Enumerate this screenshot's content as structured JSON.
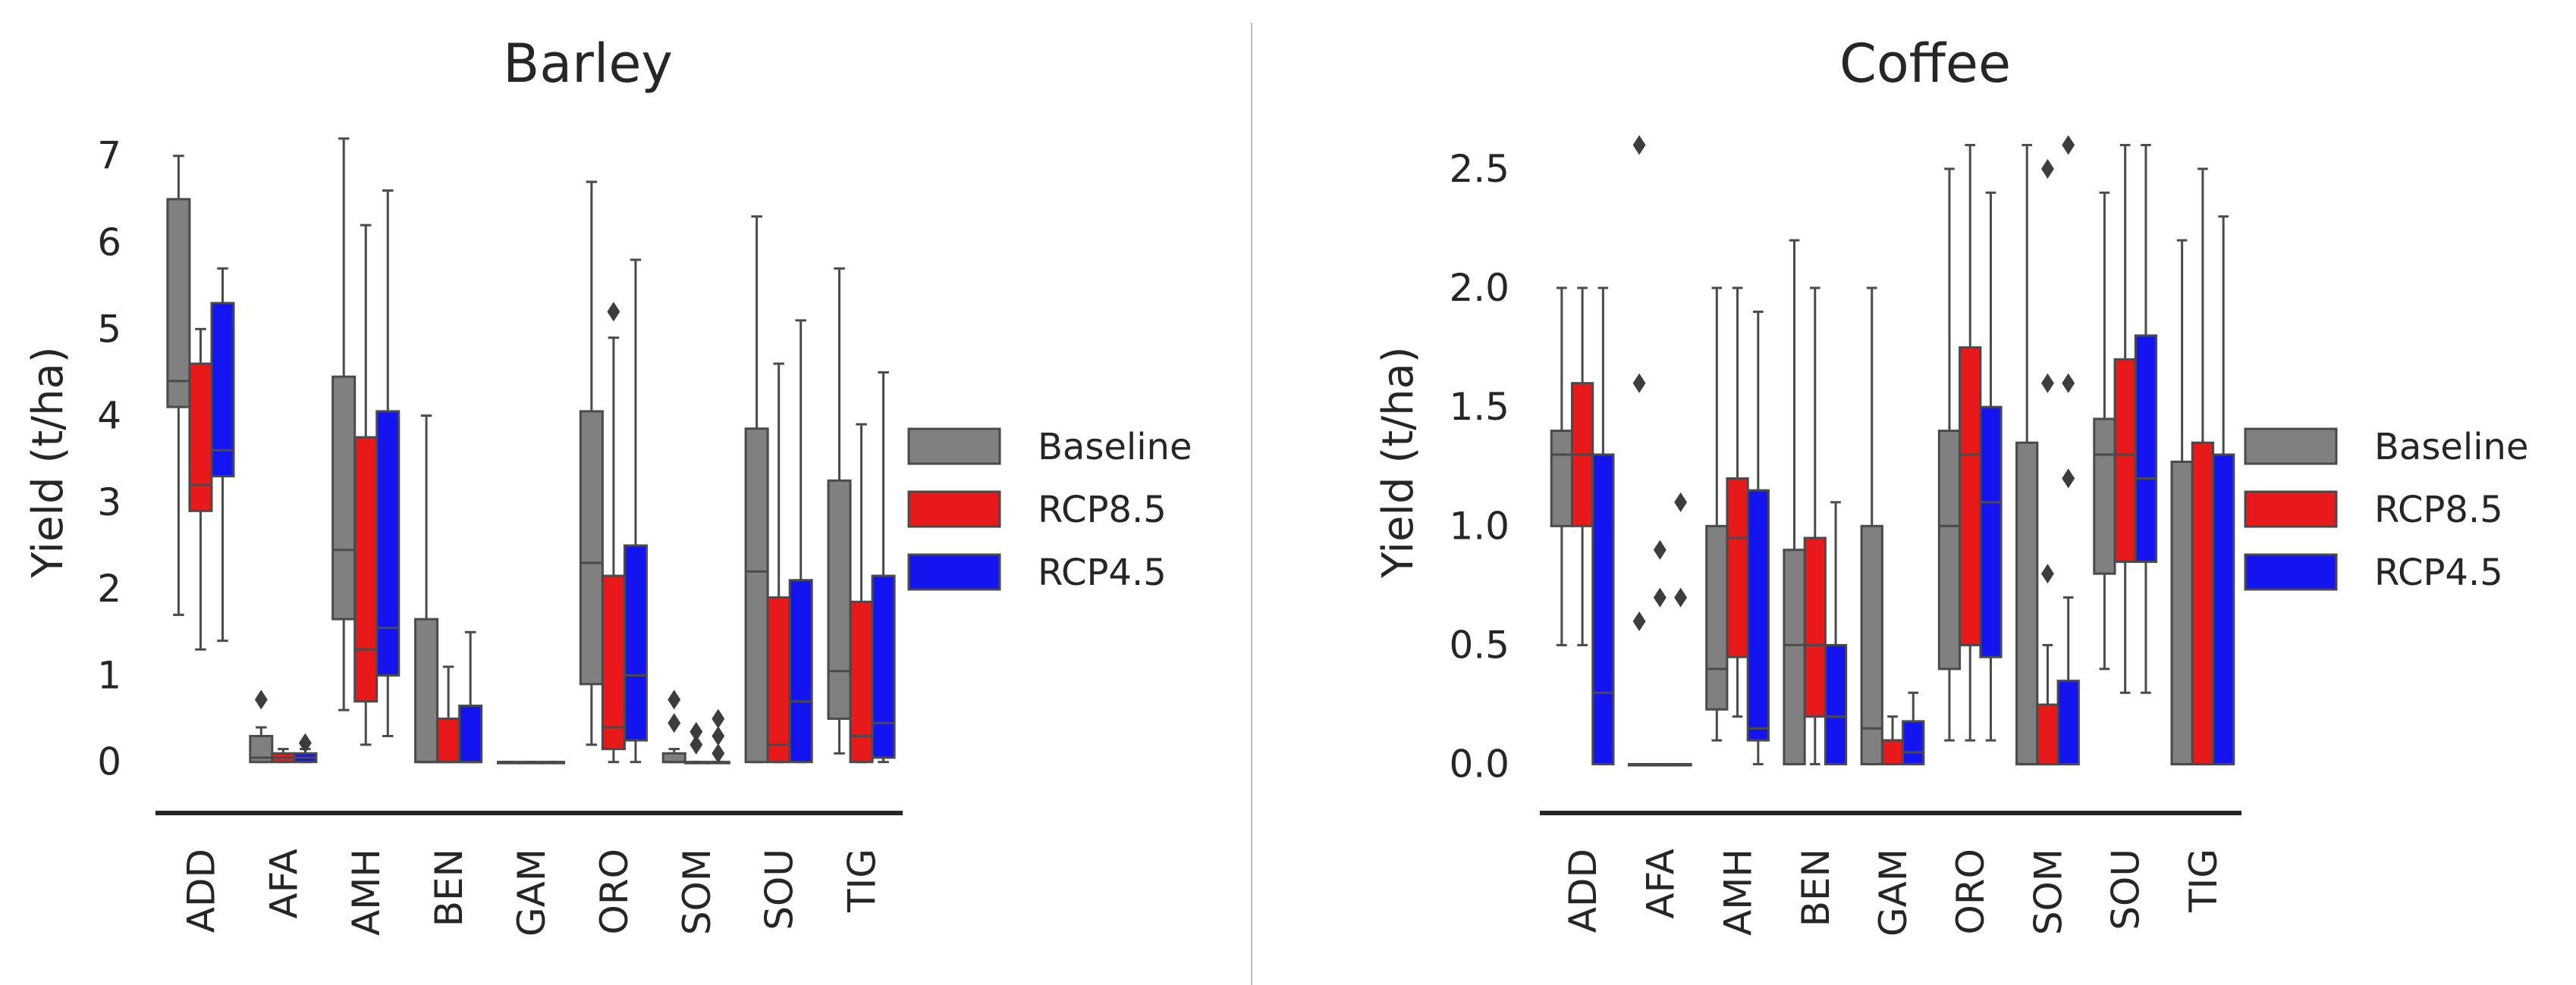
{
  "colors": {
    "Baseline": "#808080",
    "RCP8.5": "#e8191b",
    "RCP4.5": "#1414f0",
    "outline": "#4a4a4a",
    "axis": "#262626"
  },
  "chart_data": [
    {
      "type": "box",
      "title": "Barley",
      "ylabel": "Yield (t/ha)",
      "xlabel": "",
      "ylim": [
        -0.3,
        7.4
      ],
      "yticks": [
        "0",
        "1",
        "2",
        "3",
        "4",
        "5",
        "6",
        "7"
      ],
      "categories": [
        "ADD",
        "AFA",
        "AMH",
        "BEN",
        "GAM",
        "ORO",
        "SOM",
        "SOU",
        "TIG"
      ],
      "legend": {
        "position": "right",
        "entries": [
          "Baseline",
          "RCP8.5",
          "RCP4.5"
        ]
      },
      "series": [
        {
          "name": "Baseline",
          "boxes": [
            {
              "min": 1.7,
              "q1": 4.1,
              "med": 4.4,
              "q3": 6.5,
              "max": 7.0,
              "fliers": []
            },
            {
              "min": 0.0,
              "q1": 0.0,
              "med": 0.05,
              "q3": 0.3,
              "max": 0.4,
              "fliers": [
                0.72
              ]
            },
            {
              "min": 0.6,
              "q1": 1.65,
              "med": 2.45,
              "q3": 4.45,
              "max": 7.2,
              "fliers": []
            },
            {
              "min": 0.0,
              "q1": 0.0,
              "med": 0.0,
              "q3": 1.65,
              "max": 4.0,
              "fliers": []
            },
            {
              "min": 0.0,
              "q1": 0.0,
              "med": 0.0,
              "q3": 0.0,
              "max": 0.0,
              "fliers": []
            },
            {
              "min": 0.2,
              "q1": 0.9,
              "med": 2.3,
              "q3": 4.05,
              "max": 6.7,
              "fliers": []
            },
            {
              "min": 0.0,
              "q1": 0.0,
              "med": 0.0,
              "q3": 0.1,
              "max": 0.15,
              "fliers": [
                0.72,
                0.45
              ]
            },
            {
              "min": 0.0,
              "q1": 0.0,
              "med": 2.2,
              "q3": 3.85,
              "max": 6.3,
              "fliers": []
            },
            {
              "min": 0.1,
              "q1": 0.5,
              "med": 1.05,
              "q3": 3.25,
              "max": 5.7,
              "fliers": []
            }
          ]
        },
        {
          "name": "RCP8.5",
          "boxes": [
            {
              "min": 1.3,
              "q1": 2.9,
              "med": 3.2,
              "q3": 4.6,
              "max": 5.0,
              "fliers": []
            },
            {
              "min": 0.0,
              "q1": 0.0,
              "med": 0.05,
              "q3": 0.1,
              "max": 0.15,
              "fliers": []
            },
            {
              "min": 0.2,
              "q1": 0.7,
              "med": 1.3,
              "q3": 3.75,
              "max": 6.2,
              "fliers": []
            },
            {
              "min": 0.0,
              "q1": 0.0,
              "med": 0.0,
              "q3": 0.5,
              "max": 1.1,
              "fliers": []
            },
            {
              "min": 0.0,
              "q1": 0.0,
              "med": 0.0,
              "q3": 0.0,
              "max": 0.0,
              "fliers": []
            },
            {
              "min": 0.0,
              "q1": 0.15,
              "med": 0.4,
              "q3": 2.15,
              "max": 4.9,
              "fliers": [
                5.2
              ]
            },
            {
              "min": 0.0,
              "q1": 0.0,
              "med": 0.0,
              "q3": 0.0,
              "max": 0.0,
              "fliers": [
                0.35,
                0.2
              ]
            },
            {
              "min": 0.0,
              "q1": 0.0,
              "med": 0.2,
              "q3": 1.9,
              "max": 4.6,
              "fliers": []
            },
            {
              "min": 0.0,
              "q1": 0.0,
              "med": 0.3,
              "q3": 1.85,
              "max": 3.9,
              "fliers": []
            }
          ]
        },
        {
          "name": "RCP4.5",
          "boxes": [
            {
              "min": 1.4,
              "q1": 3.3,
              "med": 3.6,
              "q3": 5.3,
              "max": 5.7,
              "fliers": []
            },
            {
              "min": 0.0,
              "q1": 0.0,
              "med": 0.05,
              "q3": 0.1,
              "max": 0.15,
              "fliers": [
                0.22
              ]
            },
            {
              "min": 0.3,
              "q1": 1.0,
              "med": 1.55,
              "q3": 4.05,
              "max": 6.6,
              "fliers": []
            },
            {
              "min": 0.0,
              "q1": 0.0,
              "med": 0.0,
              "q3": 0.65,
              "max": 1.5,
              "fliers": []
            },
            {
              "min": 0.0,
              "q1": 0.0,
              "med": 0.0,
              "q3": 0.0,
              "max": 0.0,
              "fliers": []
            },
            {
              "min": 0.0,
              "q1": 0.25,
              "med": 1.0,
              "q3": 2.5,
              "max": 5.8,
              "fliers": []
            },
            {
              "min": 0.0,
              "q1": 0.0,
              "med": 0.0,
              "q3": 0.0,
              "max": 0.0,
              "fliers": [
                0.5,
                0.3,
                0.1
              ]
            },
            {
              "min": 0.0,
              "q1": 0.0,
              "med": 0.7,
              "q3": 2.1,
              "max": 5.1,
              "fliers": []
            },
            {
              "min": 0.0,
              "q1": 0.05,
              "med": 0.45,
              "q3": 2.15,
              "max": 4.5,
              "fliers": []
            }
          ]
        }
      ]
    },
    {
      "type": "box",
      "title": "Coffee",
      "ylabel": "Yield (t/ha)",
      "xlabel": "",
      "ylim": [
        -0.1,
        2.7
      ],
      "yticks": [
        "0.0",
        "0.5",
        "1.0",
        "1.5",
        "2.0",
        "2.5"
      ],
      "categories": [
        "ADD",
        "AFA",
        "AMH",
        "BEN",
        "GAM",
        "ORO",
        "SOM",
        "SOU",
        "TIG"
      ],
      "legend": {
        "position": "right",
        "entries": [
          "Baseline",
          "RCP8.5",
          "RCP4.5"
        ]
      },
      "series": [
        {
          "name": "Baseline",
          "boxes": [
            {
              "min": 0.5,
              "q1": 1.0,
              "med": 1.3,
              "q3": 1.4,
              "max": 2.0,
              "fliers": []
            },
            {
              "min": 0.0,
              "q1": 0.0,
              "med": 0.0,
              "q3": 0.0,
              "max": 0.0,
              "fliers": [
                2.6,
                1.6,
                0.6
              ]
            },
            {
              "min": 0.1,
              "q1": 0.23,
              "med": 0.4,
              "q3": 1.0,
              "max": 2.0,
              "fliers": []
            },
            {
              "min": 0.0,
              "q1": 0.0,
              "med": 0.5,
              "q3": 0.9,
              "max": 2.2,
              "fliers": []
            },
            {
              "min": 0.0,
              "q1": 0.0,
              "med": 0.15,
              "q3": 1.0,
              "max": 2.0,
              "fliers": []
            },
            {
              "min": 0.1,
              "q1": 0.4,
              "med": 1.0,
              "q3": 1.4,
              "max": 2.5,
              "fliers": []
            },
            {
              "min": 0.0,
              "q1": 0.0,
              "med": 0.0,
              "q3": 1.35,
              "max": 2.6,
              "fliers": []
            },
            {
              "min": 0.4,
              "q1": 0.8,
              "med": 1.3,
              "q3": 1.45,
              "max": 2.4,
              "fliers": []
            },
            {
              "min": 0.0,
              "q1": 0.0,
              "med": 0.0,
              "q3": 1.27,
              "max": 2.2,
              "fliers": []
            }
          ]
        },
        {
          "name": "RCP8.5",
          "boxes": [
            {
              "min": 0.5,
              "q1": 1.0,
              "med": 1.3,
              "q3": 1.6,
              "max": 2.0,
              "fliers": []
            },
            {
              "min": 0.0,
              "q1": 0.0,
              "med": 0.0,
              "q3": 0.0,
              "max": 0.0,
              "fliers": [
                0.9,
                0.7
              ]
            },
            {
              "min": 0.2,
              "q1": 0.45,
              "med": 0.95,
              "q3": 1.2,
              "max": 2.0,
              "fliers": []
            },
            {
              "min": 0.0,
              "q1": 0.2,
              "med": 0.5,
              "q3": 0.95,
              "max": 2.0,
              "fliers": []
            },
            {
              "min": 0.0,
              "q1": 0.0,
              "med": 0.1,
              "q3": 0.1,
              "max": 0.2,
              "fliers": []
            },
            {
              "min": 0.1,
              "q1": 0.5,
              "med": 1.3,
              "q3": 1.75,
              "max": 2.6,
              "fliers": []
            },
            {
              "min": 0.0,
              "q1": 0.0,
              "med": 0.0,
              "q3": 0.25,
              "max": 0.5,
              "fliers": [
                2.5,
                1.6,
                0.8
              ]
            },
            {
              "min": 0.3,
              "q1": 0.85,
              "med": 1.3,
              "q3": 1.7,
              "max": 2.6,
              "fliers": []
            },
            {
              "min": 0.0,
              "q1": 0.0,
              "med": 0.0,
              "q3": 1.35,
              "max": 2.5,
              "fliers": []
            }
          ]
        },
        {
          "name": "RCP4.5",
          "boxes": [
            {
              "min": 0.0,
              "q1": 0.0,
              "med": 0.3,
              "q3": 1.3,
              "max": 2.0,
              "fliers": []
            },
            {
              "min": 0.0,
              "q1": 0.0,
              "med": 0.0,
              "q3": 0.0,
              "max": 0.0,
              "fliers": [
                1.1,
                0.7
              ]
            },
            {
              "min": 0.0,
              "q1": 0.1,
              "med": 0.15,
              "q3": 1.15,
              "max": 1.9,
              "fliers": []
            },
            {
              "min": 0.0,
              "q1": 0.0,
              "med": 0.2,
              "q3": 0.5,
              "max": 1.1,
              "fliers": []
            },
            {
              "min": 0.0,
              "q1": 0.0,
              "med": 0.05,
              "q3": 0.18,
              "max": 0.3,
              "fliers": []
            },
            {
              "min": 0.1,
              "q1": 0.45,
              "med": 1.1,
              "q3": 1.5,
              "max": 2.4,
              "fliers": []
            },
            {
              "min": 0.0,
              "q1": 0.0,
              "med": 0.0,
              "q3": 0.35,
              "max": 0.7,
              "fliers": [
                2.6,
                1.6,
                1.2
              ]
            },
            {
              "min": 0.3,
              "q1": 0.85,
              "med": 1.2,
              "q3": 1.8,
              "max": 2.6,
              "fliers": []
            },
            {
              "min": 0.0,
              "q1": 0.0,
              "med": 0.0,
              "q3": 1.3,
              "max": 2.3,
              "fliers": []
            }
          ]
        }
      ]
    }
  ]
}
